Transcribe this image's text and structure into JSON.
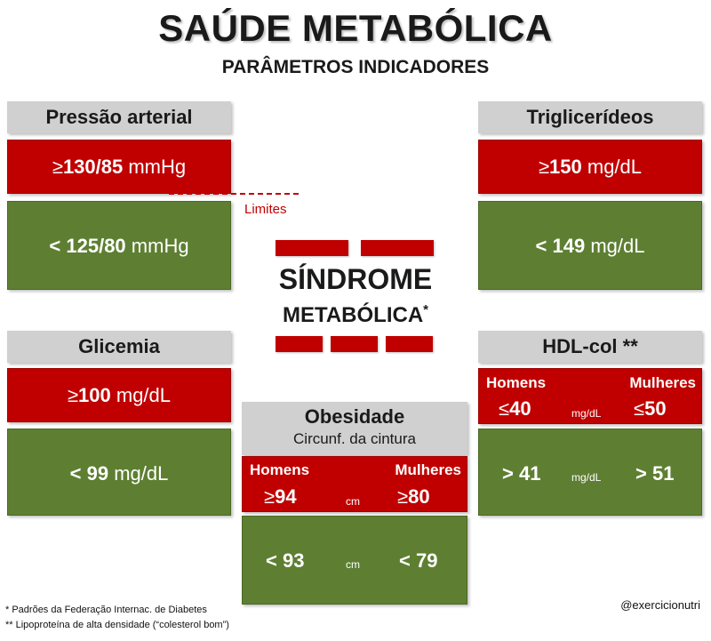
{
  "title": "SAÚDE METABÓLICA",
  "subtitle": "PARÂMETROS INDICADORES",
  "center": {
    "line1": "SÍNDROME",
    "line2": "METABÓLICA",
    "mark": "*",
    "limits_label": "Limites"
  },
  "pressure": {
    "header": "Pressão arterial",
    "symbol": "≥",
    "high_value": "130/85",
    "high_unit": "mmHg",
    "low_value": "< 125/80",
    "low_unit": "mmHg"
  },
  "triglycerides": {
    "header": "Triglicerídeos",
    "symbol": "≥",
    "high_value": "150",
    "high_unit": "mg/dL",
    "low_value": "< 149",
    "low_unit": "mg/dL"
  },
  "glycemia": {
    "header": "Glicemia",
    "symbol": "≥",
    "high_value": "100",
    "high_unit": "mg/dL",
    "low_value": "< 99",
    "low_unit": "mg/dL"
  },
  "hdl": {
    "header": "HDL-col **",
    "men_label": "Homens",
    "women_label": "Mulheres",
    "symbol": "≤",
    "men_high": "40",
    "women_high": "50",
    "unit": "mg/dL",
    "men_low": "> 41",
    "women_low": "> 51"
  },
  "obesity": {
    "header": "Obesidade",
    "subheader": "Circunf. da cintura",
    "men_label": "Homens",
    "women_label": "Mulheres",
    "symbol": "≥",
    "men_high": "94",
    "women_high": "80",
    "unit": "cm",
    "men_low": "< 93",
    "women_low": "< 79"
  },
  "footnotes": {
    "note1": "* Padrões da Federação Internac. de Diabetes",
    "note2": "** Lipoproteína de alta densidade (“colesterol bom”)"
  },
  "handle": "@exercicionutri",
  "colors": {
    "red": "#c00000",
    "green": "#5e7f32",
    "header_gray": "#d0d0d0"
  }
}
